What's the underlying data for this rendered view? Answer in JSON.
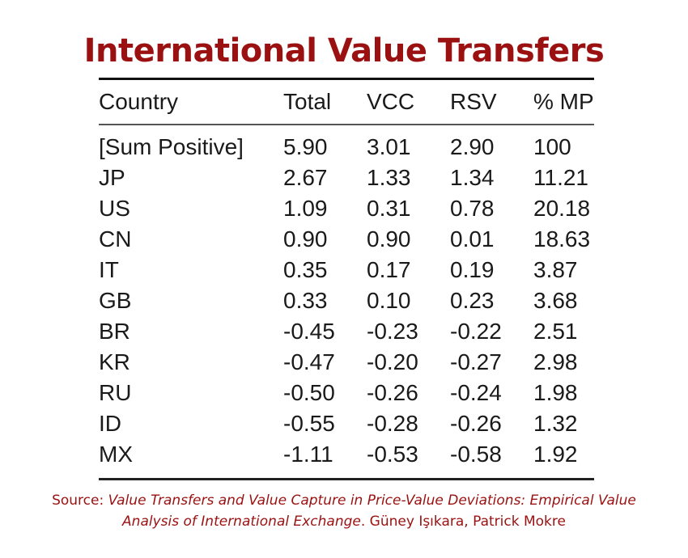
{
  "title": "International Value Transfers",
  "table": {
    "headers": {
      "country": "Country",
      "total": "Total",
      "vcc": "VCC",
      "rsv": "RSV",
      "mp": "% MP"
    },
    "rows": [
      {
        "country": "[Sum Positive]",
        "total": "5.90",
        "vcc": "3.01",
        "rsv": "2.90",
        "mp": "100"
      },
      {
        "country": "JP",
        "total": "2.67",
        "vcc": "1.33",
        "rsv": "1.34",
        "mp": "11.21"
      },
      {
        "country": "US",
        "total": "1.09",
        "vcc": "0.31",
        "rsv": "0.78",
        "mp": "20.18"
      },
      {
        "country": "CN",
        "total": "0.90",
        "vcc": "0.90",
        "rsv": "0.01",
        "mp": "18.63"
      },
      {
        "country": "IT",
        "total": "0.35",
        "vcc": "0.17",
        "rsv": "0.19",
        "mp": "3.87"
      },
      {
        "country": "GB",
        "total": "0.33",
        "vcc": "0.10",
        "rsv": "0.23",
        "mp": "3.68"
      },
      {
        "country": "BR",
        "total": "-0.45",
        "vcc": "-0.23",
        "rsv": "-0.22",
        "mp": "2.51"
      },
      {
        "country": "KR",
        "total": "-0.47",
        "vcc": "-0.20",
        "rsv": "-0.27",
        "mp": "2.98"
      },
      {
        "country": "RU",
        "total": "-0.50",
        "vcc": "-0.26",
        "rsv": "-0.24",
        "mp": "1.98"
      },
      {
        "country": "ID",
        "total": "-0.55",
        "vcc": "-0.28",
        "rsv": "-0.26",
        "mp": "1.32"
      },
      {
        "country": "MX",
        "total": "-1.11",
        "vcc": "-0.53",
        "rsv": "-0.58",
        "mp": "1.92"
      }
    ]
  },
  "source": {
    "prefix": "Source: ",
    "title_line1": "Value Transfers and Value Capture in Price-Value Deviations: Empirical Value",
    "title_line2": "Analysis of International Exchange",
    "authors": ". Güney Işıkara, Patrick Mokre"
  },
  "colors": {
    "accent": "#9b1111",
    "text": "#1a1a1a"
  }
}
